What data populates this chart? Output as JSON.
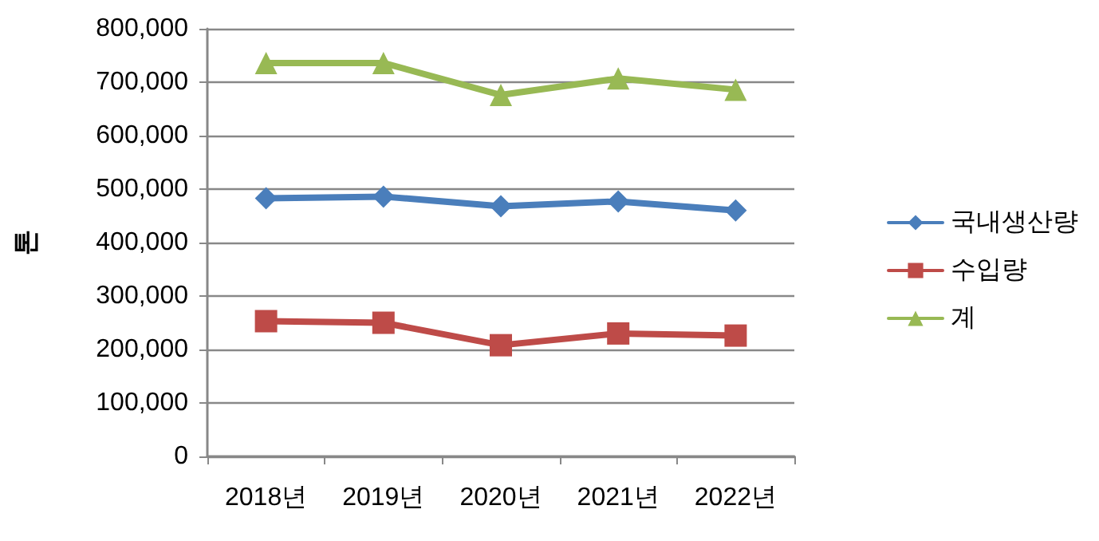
{
  "chart_data": {
    "type": "line",
    "ylabel": "톤",
    "categories": [
      "2018년",
      "2019년",
      "2020년",
      "2021년",
      "2022년"
    ],
    "series": [
      {
        "name": "국내생산량",
        "color": "#4a7ebb",
        "marker": "diamond",
        "values": [
          483000,
          486000,
          468000,
          477000,
          460000
        ]
      },
      {
        "name": "수입량",
        "color": "#be4b48",
        "marker": "square",
        "values": [
          253000,
          250000,
          208000,
          230000,
          226000
        ]
      },
      {
        "name": "계",
        "color": "#98b954",
        "marker": "triangle",
        "values": [
          736000,
          736000,
          676000,
          707000,
          686000
        ]
      }
    ],
    "ylim": [
      0,
      800000
    ],
    "yticks": [
      0,
      {
        "value": 100000,
        "label": "100,000"
      },
      {
        "value": 200000,
        "label": "200,000"
      },
      {
        "value": 300000,
        "label": "300,000"
      },
      {
        "value": 400000,
        "label": "400,000"
      },
      {
        "value": 500000,
        "label": "500,000"
      },
      {
        "value": 600000,
        "label": "600,000"
      },
      {
        "value": 700000,
        "label": "700,000"
      },
      {
        "value": 800000,
        "label": "800,000"
      }
    ],
    "grid": "y",
    "legend": "right"
  }
}
